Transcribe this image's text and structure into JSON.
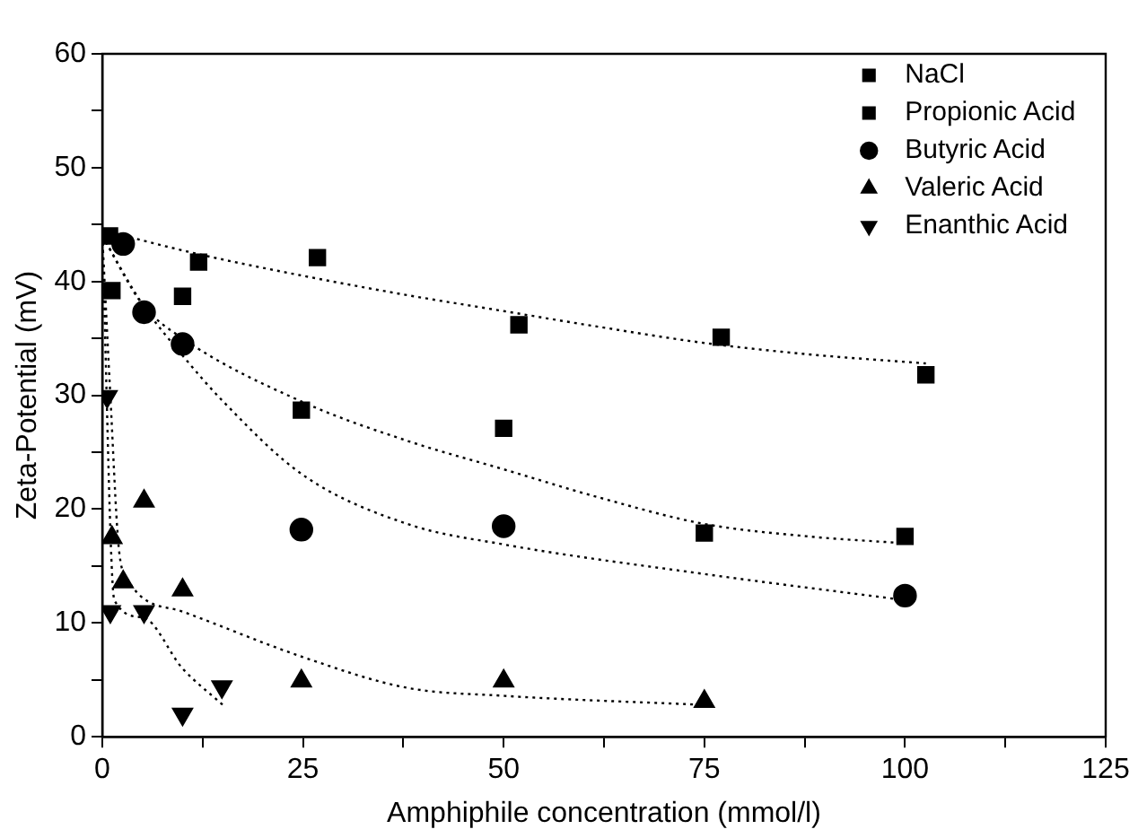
{
  "chart_data": {
    "type": "scatter",
    "xlabel": "Amphiphile concentration (mmol/l)",
    "ylabel": "Zeta-Potential (mV)",
    "xlim": [
      0,
      125
    ],
    "xticks": [
      0,
      {
        "value": 12.5,
        "label": null
      },
      25,
      {
        "value": 37.5,
        "label": null
      },
      50,
      {
        "value": 62.5,
        "label": null
      },
      75,
      {
        "value": 87.5,
        "label": null
      },
      100,
      {
        "value": 112.5,
        "label": null
      },
      125
    ],
    "ylim": [
      0,
      60
    ],
    "yticks": [
      0,
      {
        "value": 5,
        "label": null
      },
      10,
      {
        "value": 15,
        "label": null
      },
      20,
      {
        "value": 25,
        "label": null
      },
      30,
      {
        "value": 35,
        "label": null
      },
      40,
      {
        "value": 45,
        "label": null
      },
      50,
      {
        "value": 55,
        "label": null
      },
      60
    ],
    "grid": false,
    "legend": "top right",
    "series": [
      {
        "name": "NaCl",
        "color": "#000000",
        "marker": "square",
        "x": [
          0.9,
          12,
          26.8,
          51.9,
          77.1,
          102.6
        ],
        "values": [
          44.0,
          41.7,
          42.1,
          36.2,
          35.1,
          31.8
        ]
      },
      {
        "name": "Propionic Acid",
        "color": "#000000",
        "marker": "square",
        "x": [
          1.2,
          10,
          24.8,
          50,
          75,
          100
        ],
        "values": [
          39.2,
          38.7,
          28.7,
          27.1,
          17.9,
          17.6
        ]
      },
      {
        "name": "Butyric Acid",
        "color": "#000000",
        "marker": "circle",
        "x": [
          2.6,
          5.2,
          10,
          24.8,
          50,
          100
        ],
        "values": [
          43.3,
          37.3,
          34.5,
          18.2,
          18.5,
          12.4
        ]
      },
      {
        "name": "Valeric Acid",
        "color": "#000000",
        "marker": "triangle",
        "x": [
          1.2,
          2.6,
          5.2,
          10,
          24.8,
          50,
          75
        ],
        "values": [
          17.5,
          13.6,
          20.7,
          12.9,
          4.9,
          4.9,
          3.1
        ]
      },
      {
        "name": "Enanthic Acid",
        "color": "#000000",
        "marker": "triangle-down",
        "x": [
          0.6,
          1,
          5.2,
          10,
          14.9
        ],
        "values": [
          29.9,
          11.0,
          11.0,
          2.0,
          4.4
        ]
      },
      {
        "type": "line",
        "color": "#000000",
        "marker": "none",
        "line_style": "dotted",
        "x": [
          0,
          12,
          25,
          38,
          50,
          62,
          75,
          88,
          102.6
        ],
        "values": [
          44.5,
          42.4,
          40.5,
          38.8,
          37.4,
          36,
          34.6,
          33.6,
          32.8
        ]
      },
      {
        "type": "line",
        "color": "#000000",
        "marker": "none",
        "line_style": "dotted",
        "x": [
          0,
          5,
          10,
          25,
          38,
          50,
          62,
          75,
          88,
          100
        ],
        "values": [
          44,
          38,
          35,
          29.4,
          26,
          23.5,
          21,
          18.7,
          17.6,
          17.0
        ]
      },
      {
        "type": "line",
        "color": "#000000",
        "marker": "none",
        "line_style": "dotted",
        "x": [
          0,
          5,
          10,
          15,
          25,
          38,
          50,
          75,
          100
        ],
        "values": [
          44,
          38,
          33.5,
          29.5,
          23,
          18.7,
          16.9,
          14.3,
          12.0
        ]
      },
      {
        "type": "line",
        "color": "#000000",
        "marker": "none",
        "line_style": "dotted",
        "x": [
          0,
          1,
          2,
          3,
          10,
          25,
          38,
          50,
          75
        ],
        "values": [
          44,
          30,
          17,
          14,
          11,
          7,
          4.3,
          3.6,
          2.8
        ]
      },
      {
        "type": "line",
        "color": "#000000",
        "marker": "none",
        "line_style": "dotted",
        "x": [
          0,
          1.5,
          5,
          10,
          15
        ],
        "values": [
          44,
          12,
          10.5,
          6,
          2.8
        ]
      }
    ]
  }
}
